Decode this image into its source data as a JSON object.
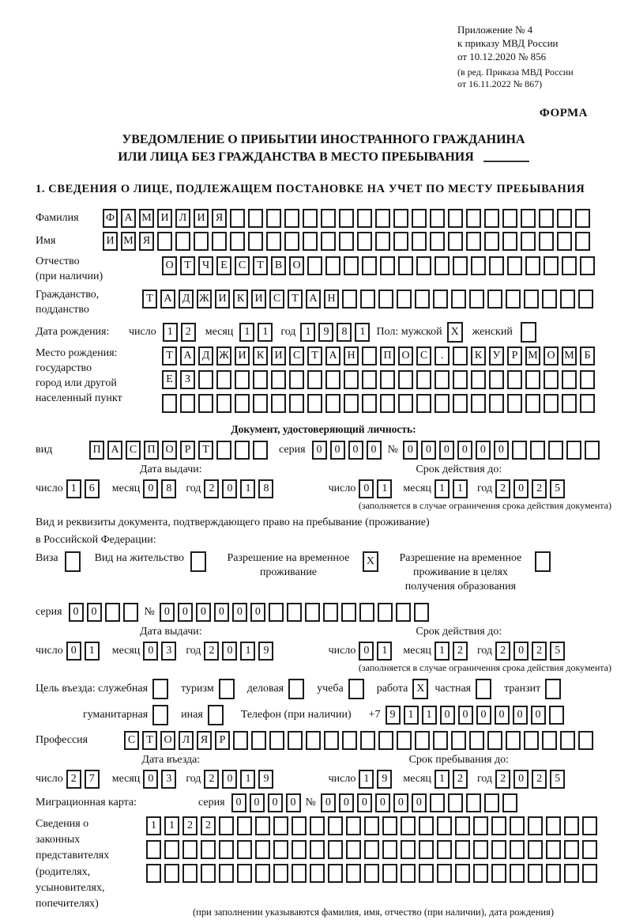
{
  "header": {
    "appendix_lines": [
      "Приложение № 4",
      "к приказу МВД России",
      "от 10.12.2020 № 856"
    ],
    "revision_lines": [
      "(в ред. Приказа МВД России",
      "от 16.11.2022 № 867)"
    ],
    "form_label": "ФОРМА"
  },
  "title": {
    "line1": "УВЕДОМЛЕНИЕ О ПРИБЫТИИ ИНОСТРАННОГО ГРАЖДАНИНА",
    "line2": "ИЛИ ЛИЦА БЕЗ ГРАЖДАНСТВА В МЕСТО ПРЕБЫВАНИЯ"
  },
  "section1_heading": "1. СВЕДЕНИЯ О ЛИЦЕ, ПОДЛЕЖАЩЕМ ПОСТАНОВКЕ НА УЧЕТ ПО МЕСТУ ПРЕБЫВАНИЯ",
  "labels": {
    "surname": "Фамилия",
    "given_name": "Имя",
    "patronymic": "Отчество",
    "patronymic_note": "(при наличии)",
    "citizenship1": "Гражданство,",
    "citizenship2": "подданство",
    "birth_date": "Дата рождения:",
    "day": "число",
    "month": "месяц",
    "year": "год",
    "sex": "Пол: мужской",
    "female": "женский",
    "birth_place": "Место рождения:",
    "state": "государство",
    "city1": "город или другой",
    "city2": "населенный пункт",
    "identity_doc_heading": "Документ, удостоверяющий личность:",
    "doc_type": "вид",
    "series": "серия",
    "number": "№",
    "issue_date": "Дата выдачи:",
    "valid_until": "Срок действия до:",
    "limited_note": "(заполняется в случае ограничения срока действия документа)",
    "residence_doc_line1": "Вид и реквизиты документа, подтверждающего право на пребывание (проживание)",
    "residence_doc_line2": "в Российской Федерации:",
    "visa": "Виза",
    "residence_permit": "Вид на жительство",
    "temp_residence": "Разрешение на временное проживание",
    "temp_residence_edu": "Разрешение на временное проживание в целях получения образования",
    "entry_purpose": "Цель въезда: служебная",
    "tourism": "туризм",
    "business": "деловая",
    "study": "учеба",
    "work": "работа",
    "private": "частная",
    "transit": "транзит",
    "humanitarian": "гуманитарная",
    "other": "иная",
    "phone": "Телефон (при наличии)",
    "phone_prefix": "+7",
    "profession": "Профессия",
    "entry_date": "Дата въезда:",
    "stay_until": "Срок пребывания до:",
    "migration_card": "Миграционная карта:",
    "representatives": [
      "Сведения о",
      "законных",
      "представителях",
      "(родителях,",
      "усыновителях,",
      "попечителях)"
    ],
    "representatives_note": "(при заполнении указываются фамилия, имя, отчество (при наличии), дата рождения)"
  },
  "boxes": {
    "surname": {
      "n": 27,
      "v": "ФАМИЛИЯ"
    },
    "given_name": {
      "n": 27,
      "v": "ИМЯ"
    },
    "patronymic": {
      "n": 24,
      "v": "ОТЧЕСТВО"
    },
    "citizenship": {
      "n": 25,
      "v": "ТАДЖИКИСТАН"
    },
    "birth_day": {
      "n": 2,
      "v": "12"
    },
    "birth_month": {
      "n": 2,
      "v": "11"
    },
    "birth_year": {
      "n": 4,
      "v": "1981"
    },
    "male_cb": {
      "n": 1,
      "v": "X"
    },
    "female_cb": {
      "n": 1,
      "v": ""
    },
    "birthplace1": {
      "n": 24,
      "v": "ТАДЖИКИСТАН ПОС. КУРМОМБ"
    },
    "birthplace2": {
      "n": 24,
      "v": "ЕЗ"
    },
    "birthplace3": {
      "n": 24,
      "v": ""
    },
    "doc_type": {
      "n": 10,
      "v": "ПАСПОРТ"
    },
    "doc_series": {
      "n": 4,
      "v": "0000"
    },
    "doc_number": {
      "n": 11,
      "v": "000000"
    },
    "doc_issue_day": {
      "n": 2,
      "v": "16"
    },
    "doc_issue_month": {
      "n": 2,
      "v": "08"
    },
    "doc_issue_year": {
      "n": 4,
      "v": "2018"
    },
    "doc_exp_day": {
      "n": 2,
      "v": "01"
    },
    "doc_exp_month": {
      "n": 2,
      "v": "11"
    },
    "doc_exp_year": {
      "n": 4,
      "v": "2025"
    },
    "visa_cb": {
      "n": 1,
      "v": ""
    },
    "residence_cb": {
      "n": 1,
      "v": ""
    },
    "temp_res_cb": {
      "n": 1,
      "v": "X"
    },
    "temp_res_edu_cb": {
      "n": 1,
      "v": ""
    },
    "permit_series": {
      "n": 4,
      "v": "00"
    },
    "permit_number": {
      "n": 15,
      "v": "000000"
    },
    "permit_issue_day": {
      "n": 2,
      "v": "01"
    },
    "permit_issue_month": {
      "n": 2,
      "v": "03"
    },
    "permit_issue_year": {
      "n": 4,
      "v": "2019"
    },
    "permit_exp_day": {
      "n": 2,
      "v": "01"
    },
    "permit_exp_month": {
      "n": 2,
      "v": "12"
    },
    "permit_exp_year": {
      "n": 4,
      "v": "2025"
    },
    "official_cb": {
      "n": 1,
      "v": ""
    },
    "tourism_cb": {
      "n": 1,
      "v": ""
    },
    "business_cb": {
      "n": 1,
      "v": ""
    },
    "study_cb": {
      "n": 1,
      "v": ""
    },
    "work_cb": {
      "n": 1,
      "v": "X"
    },
    "private_cb": {
      "n": 1,
      "v": ""
    },
    "transit_cb": {
      "n": 1,
      "v": ""
    },
    "humanitarian_cb": {
      "n": 1,
      "v": ""
    },
    "other_cb": {
      "n": 1,
      "v": ""
    },
    "phone": {
      "n": 10,
      "v": "911000000"
    },
    "profession": {
      "n": 26,
      "v": "СТОЛЯР"
    },
    "entry_day": {
      "n": 2,
      "v": "27"
    },
    "entry_month": {
      "n": 2,
      "v": "03"
    },
    "entry_year": {
      "n": 4,
      "v": "2019"
    },
    "stay_day": {
      "n": 2,
      "v": "19"
    },
    "stay_month": {
      "n": 2,
      "v": "12"
    },
    "stay_year": {
      "n": 4,
      "v": "2025"
    },
    "mig_series": {
      "n": 4,
      "v": "0000"
    },
    "mig_number": {
      "n": 11,
      "v": "000000"
    },
    "rep1": {
      "n": 25,
      "v": "1122"
    },
    "rep2": {
      "n": 25,
      "v": ""
    },
    "rep3": {
      "n": 25,
      "v": ""
    }
  }
}
